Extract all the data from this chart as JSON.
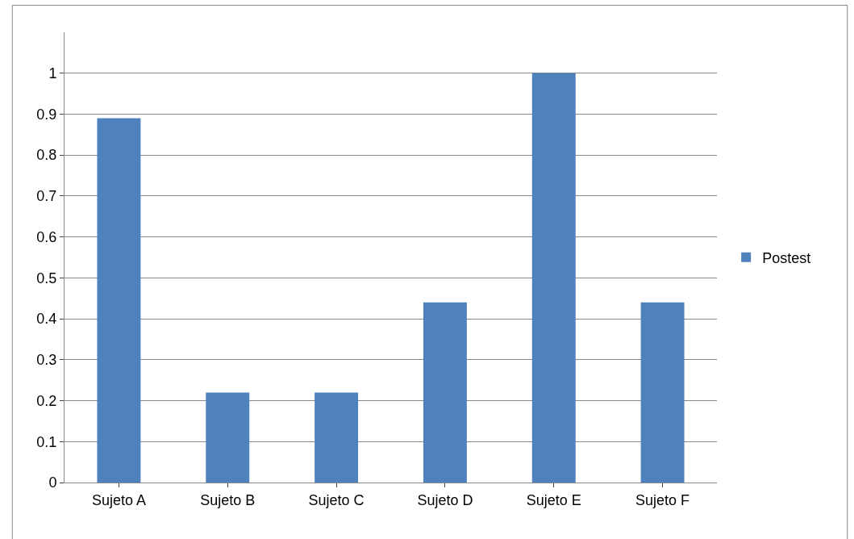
{
  "chart_data": {
    "type": "bar",
    "categories": [
      "Sujeto A",
      "Sujeto B",
      "Sujeto C",
      "Sujeto D",
      "Sujeto E",
      "Sujeto F"
    ],
    "series": [
      {
        "name": "Postest",
        "color": "#4f81bd",
        "values": [
          0.89,
          0.22,
          0.22,
          0.44,
          1.0,
          0.44
        ]
      }
    ],
    "ylim": [
      0,
      1.1
    ],
    "yticks": [
      0,
      0.1,
      0.2,
      0.3,
      0.4,
      0.5,
      0.6,
      0.7,
      0.8,
      0.9,
      1
    ],
    "grid": "y",
    "legend": "right"
  }
}
